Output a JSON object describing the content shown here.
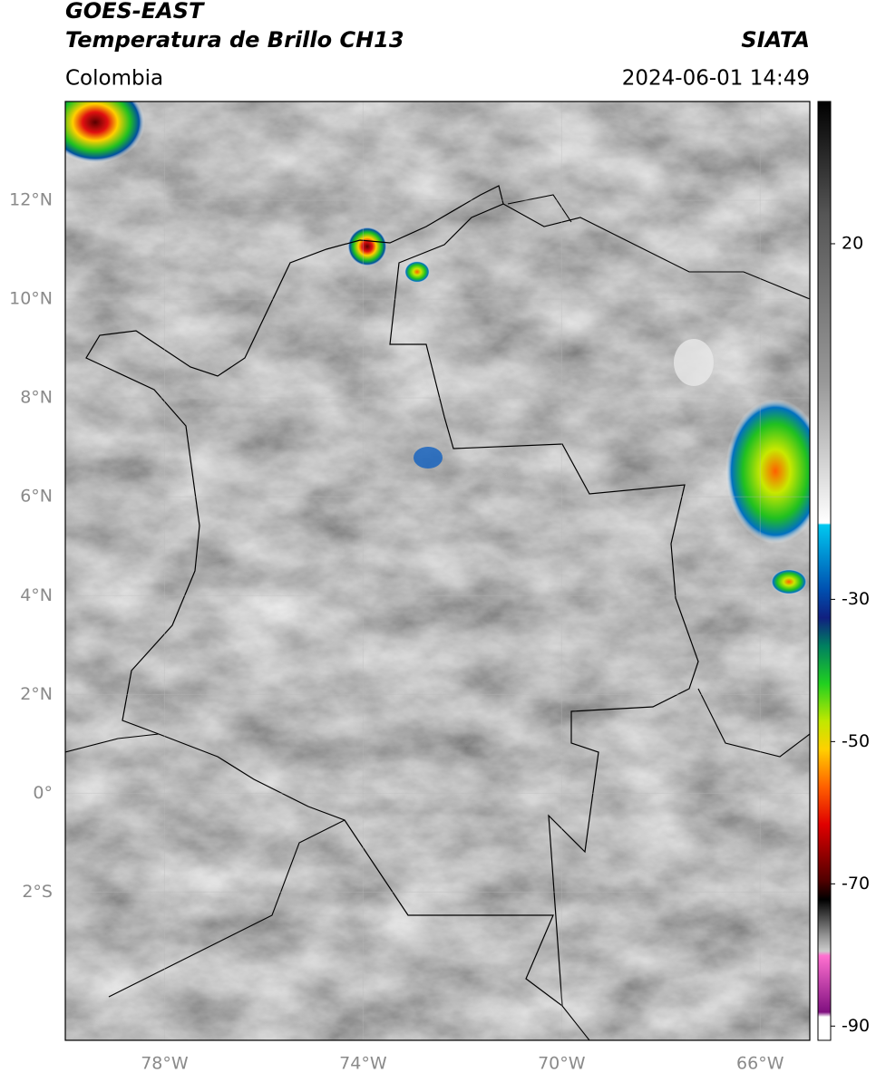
{
  "header": {
    "title": "GOES-EAST",
    "subtitle": "Temperatura de Brillo CH13",
    "source": "SIATA",
    "region": "Colombia",
    "datetime": "2024-06-01 14:49"
  },
  "map": {
    "xlim": [
      -80,
      -65
    ],
    "ylim": [
      -5,
      14
    ],
    "xticks": [
      {
        "value": -78,
        "label": "78°W"
      },
      {
        "value": -74,
        "label": "74°W"
      },
      {
        "value": -70,
        "label": "70°W"
      },
      {
        "value": -66,
        "label": "66°W"
      }
    ],
    "yticks": [
      {
        "value": 12,
        "label": "12°N"
      },
      {
        "value": 10,
        "label": "10°N"
      },
      {
        "value": 8,
        "label": "8°N"
      },
      {
        "value": 6,
        "label": "6°N"
      },
      {
        "value": 4,
        "label": "4°N"
      },
      {
        "value": 2,
        "label": "2°N"
      },
      {
        "value": 0,
        "label": "0°"
      },
      {
        "value": -2,
        "label": "2°S"
      }
    ]
  },
  "colorbar": {
    "lim": [
      -92,
      40
    ],
    "ticks": [
      20,
      -30,
      -50,
      -70,
      -90
    ]
  }
}
